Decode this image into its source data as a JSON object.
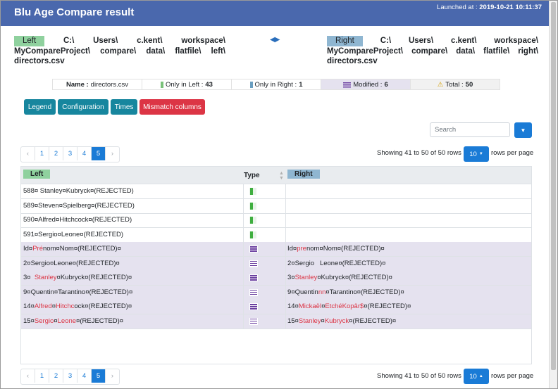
{
  "app": {
    "title": "Blu Age Compare result",
    "launched_label": "Launched at : ",
    "launched_at": "2019-10-21 10:11:37"
  },
  "left_file": {
    "tag": "Left",
    "path_line1": [
      "C:\\",
      "Users\\",
      "c.kent\\",
      "workspace\\"
    ],
    "path_line2": [
      "MyCompareProject\\",
      "compare\\",
      "data\\",
      "flatfile\\",
      "left\\"
    ],
    "filename": "directors.csv"
  },
  "right_file": {
    "tag": "Right",
    "path_line1": [
      "C:\\",
      "Users\\",
      "c.kent\\",
      "workspace\\"
    ],
    "path_line2": [
      "MyCompareProject\\",
      "compare\\",
      "data\\",
      "flatfile\\",
      "right\\"
    ],
    "filename": "directors.csv"
  },
  "nav_arrows": "◀▶",
  "summary": {
    "name_label": "Name : ",
    "name_value": "directors.csv",
    "only_left_label": "Only in Left : ",
    "only_left_value": "43",
    "only_right_label": "Only in Right : ",
    "only_right_value": "1",
    "modified_label": "Modified : ",
    "modified_value": "6",
    "total_label": "Total : ",
    "total_value": "50",
    "warning_icon": "⚠"
  },
  "buttons": {
    "legend": "Legend",
    "configuration": "Configuration",
    "times": "Times",
    "mismatch": "Mismatch columns"
  },
  "search": {
    "placeholder": "Search"
  },
  "pagination": {
    "prev": "‹",
    "next": "›",
    "pages": [
      "1",
      "2",
      "3",
      "4",
      "5"
    ],
    "active_page": "5",
    "showing": "Showing 41 to 50 of 50 rows",
    "rows_per_page_value": "10",
    "rows_per_page_label": "rows per page"
  },
  "table": {
    "headers": {
      "left": "Left",
      "type": "Type",
      "right": "Right"
    },
    "rows": [
      {
        "type": "only-left",
        "left": [
          {
            "t": "588¤ Stanley¤Kubryck¤(REJECTED)"
          }
        ],
        "right": []
      },
      {
        "type": "only-left",
        "left": [
          {
            "t": "589¤Steven¤Spielberg¤(REJECTED)"
          }
        ],
        "right": []
      },
      {
        "type": "only-left",
        "left": [
          {
            "t": "590¤Alfred¤Hitchcock¤(REJECTED)"
          }
        ],
        "right": []
      },
      {
        "type": "only-left",
        "left": [
          {
            "t": "591¤Sergio¤Leone¤(REJECTED)"
          }
        ],
        "right": []
      },
      {
        "type": "modified",
        "left": [
          {
            "t": "Id¤"
          },
          {
            "t": "Pré",
            "r": true
          },
          {
            "t": "nom¤Nom¤(REJECTED)¤"
          }
        ],
        "right": [
          {
            "t": "Id¤"
          },
          {
            "t": "pre",
            "r": true
          },
          {
            "t": "nom¤Nom¤(REJECTED)¤"
          }
        ]
      },
      {
        "type": "modified",
        "left": [
          {
            "t": "2¤Sergio¤Leone¤(REJECTED)¤"
          }
        ],
        "right": [
          {
            "t": "2¤Sergio   Leone¤(REJECTED)¤"
          }
        ]
      },
      {
        "type": "modified",
        "left": [
          {
            "t": "3¤  "
          },
          {
            "t": "Stanley",
            "r": true
          },
          {
            "t": "¤Kubryck¤(REJECTED)¤"
          }
        ],
        "right": [
          {
            "t": "3¤"
          },
          {
            "t": "Stanley",
            "r": true
          },
          {
            "t": "¤Kubryck¤(REJECTED)¤"
          }
        ]
      },
      {
        "type": "modified",
        "left": [
          {
            "t": "9¤Quentin¤Tarantino¤(REJECTED)¤"
          }
        ],
        "right": [
          {
            "t": "9¤Quentin"
          },
          {
            "t": "nn",
            "r": true
          },
          {
            "t": "¤Tarantino¤(REJECTED)¤"
          }
        ]
      },
      {
        "type": "modified",
        "left": [
          {
            "t": "14¤"
          },
          {
            "t": "Alfred",
            "r": true
          },
          {
            "t": "¤"
          },
          {
            "t": "Hitchc",
            "r": true
          },
          {
            "t": "ock¤(REJECTED)¤"
          }
        ],
        "right": [
          {
            "t": "14¤"
          },
          {
            "t": "Mickaël",
            "r": true
          },
          {
            "t": "¤"
          },
          {
            "t": "EtchéKopâr$",
            "r": true
          },
          {
            "t": "¤(REJECTED)¤"
          }
        ]
      },
      {
        "type": "modified",
        "left": [
          {
            "t": "15¤"
          },
          {
            "t": "Sergio",
            "r": true
          },
          {
            "t": "¤"
          },
          {
            "t": "Leone",
            "r": true
          },
          {
            "t": "¤(REJECTED)¤"
          }
        ],
        "right": [
          {
            "t": "15¤"
          },
          {
            "t": "Stanley",
            "r": true
          },
          {
            "t": "¤"
          },
          {
            "t": "Kubryck",
            "r": true
          },
          {
            "t": "¤(REJECTED)¤"
          }
        ]
      }
    ]
  },
  "colors": {
    "header_bg": "#4a68ad",
    "left_green": "#8fd19e",
    "right_blue": "#8fb6d1",
    "modified_bg": "#e5e2ef",
    "primary": "#1a7bd6",
    "teal": "#17869e",
    "danger": "#dc3545"
  }
}
